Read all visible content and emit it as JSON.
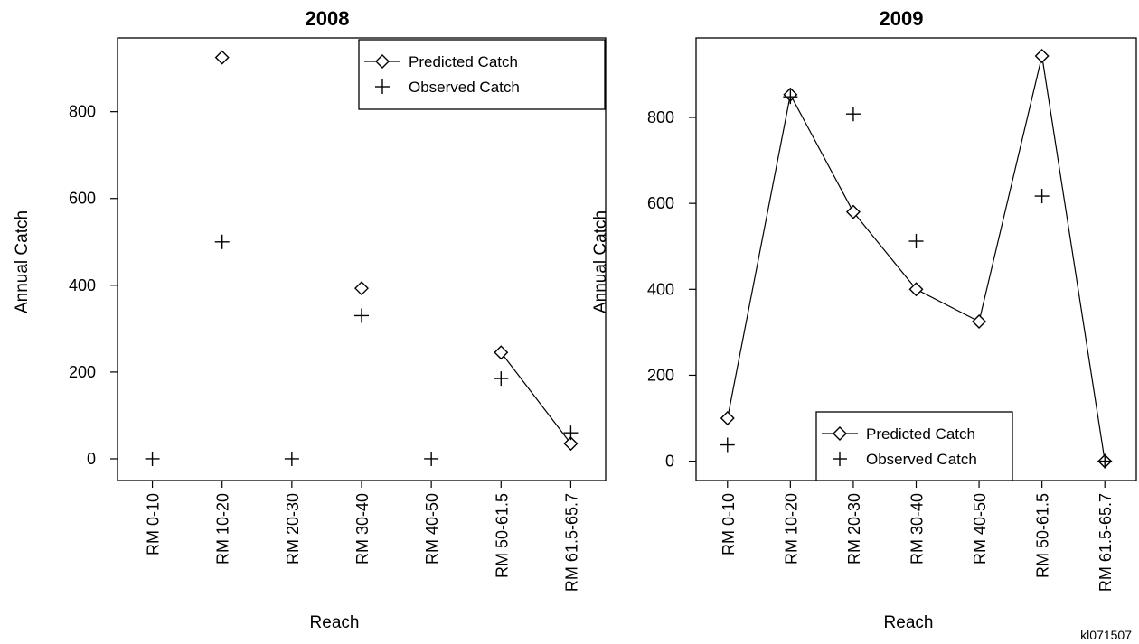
{
  "figure_id": "kl071507",
  "chart_data": [
    {
      "type": "scatter",
      "title": "2008",
      "xlabel": "Reach",
      "ylabel": "Annual Catch",
      "categories": [
        "RM 0-10",
        "RM 10-20",
        "RM 20-30",
        "RM 30-40",
        "RM 40-50",
        "RM 50-61.5",
        "RM 61.5-65.7"
      ],
      "yticks": [
        "0",
        "200",
        "400",
        "600",
        "800"
      ],
      "ylim": [
        -50,
        970
      ],
      "legend_position": "top-right",
      "series": [
        {
          "name": "Predicted Catch",
          "marker": "diamond",
          "line": "connected where consecutive",
          "values": [
            null,
            925,
            null,
            393,
            null,
            245,
            35
          ]
        },
        {
          "name": "Observed Catch",
          "marker": "plus",
          "values": [
            0,
            500,
            0,
            330,
            0,
            185,
            60
          ]
        }
      ]
    },
    {
      "type": "line",
      "title": "2009",
      "xlabel": "Reach",
      "ylabel": "Annual Catch",
      "categories": [
        "RM 0-10",
        "RM 10-20",
        "RM 20-30",
        "RM 30-40",
        "RM 40-50",
        "RM 50-61.5",
        "RM 61.5-65.7"
      ],
      "yticks": [
        "0",
        "200",
        "400",
        "600",
        "800"
      ],
      "ylim": [
        -45,
        985
      ],
      "legend_position": "bottom-center",
      "series": [
        {
          "name": "Predicted Catch",
          "marker": "diamond",
          "line": "solid",
          "values": [
            100,
            853,
            580,
            400,
            325,
            943,
            0
          ]
        },
        {
          "name": "Observed Catch",
          "marker": "plus",
          "values": [
            38,
            848,
            808,
            512,
            0,
            617,
            0
          ]
        }
      ]
    }
  ]
}
